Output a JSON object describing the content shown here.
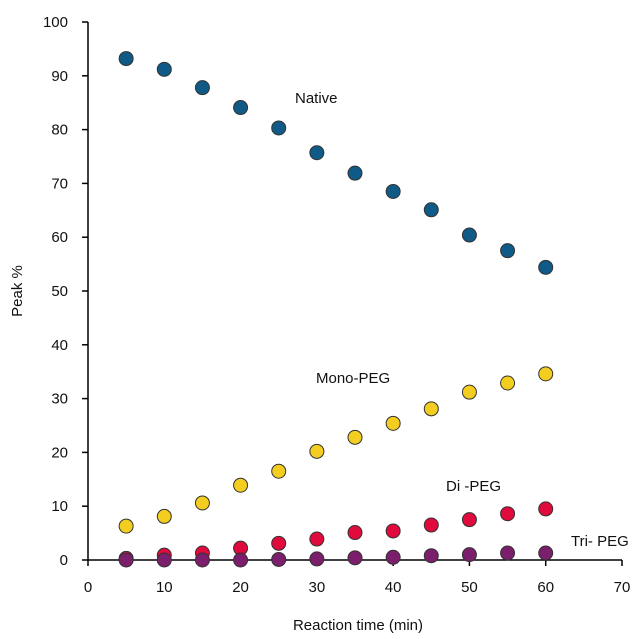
{
  "chart_data": {
    "type": "scatter",
    "title": "",
    "xlabel": "Reaction time (min)",
    "ylabel": "Peak %",
    "xlim": [
      0,
      70
    ],
    "ylim": [
      0,
      100
    ],
    "xticks": [
      0,
      10,
      20,
      30,
      40,
      50,
      60,
      70
    ],
    "yticks": [
      0,
      10,
      20,
      30,
      40,
      50,
      60,
      70,
      80,
      90,
      100
    ],
    "grid": false,
    "legend": "none",
    "x": [
      5,
      10,
      15,
      20,
      25,
      30,
      35,
      40,
      45,
      50,
      55,
      60
    ],
    "series": [
      {
        "name": "Native",
        "color": "#0f5a86",
        "values": [
          93.2,
          91.2,
          87.8,
          84.1,
          80.3,
          75.7,
          71.9,
          68.5,
          65.1,
          60.4,
          57.5,
          54.4
        ]
      },
      {
        "name": "Mono-PEG",
        "color": "#f3cd1f",
        "values": [
          6.3,
          8.1,
          10.6,
          13.9,
          16.5,
          20.2,
          22.8,
          25.4,
          28.1,
          31.2,
          32.9,
          34.6
        ]
      },
      {
        "name": "Di -PEG",
        "color": "#e00a3c",
        "values": [
          0.3,
          0.9,
          1.3,
          2.2,
          3.1,
          3.9,
          5.1,
          5.4,
          6.5,
          7.5,
          8.6,
          9.5
        ]
      },
      {
        "name": "Tri- PEG",
        "color": "#7b1e6c",
        "values": [
          0,
          0,
          0,
          0,
          0.1,
          0.2,
          0.4,
          0.5,
          0.8,
          1.0,
          1.3,
          1.3
        ]
      }
    ]
  }
}
